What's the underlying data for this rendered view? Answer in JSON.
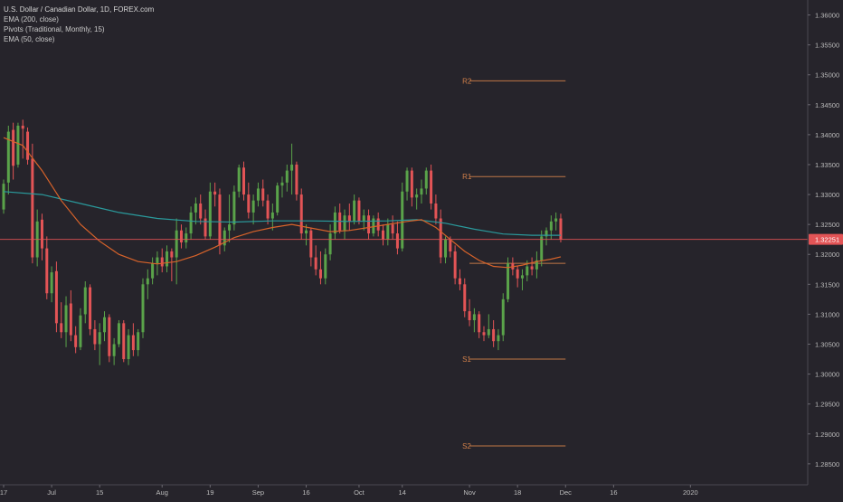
{
  "legend": {
    "symbol": "U.S. Dollar / Canadian Dollar, 1D, FOREX.com",
    "ema200": "EMA (200, close)",
    "pivots": "Pivots (Traditional, Monthly, 15)",
    "ema50": "EMA (50, close)"
  },
  "colors": {
    "background": "#26242b",
    "up": "#5aa34a",
    "down": "#e35456",
    "ema200": "#2a9a9c",
    "ema50": "#d8632a",
    "pivot": "#d2804a",
    "price_line": "#e35456",
    "text": "#bcbcbc"
  },
  "chart_data": {
    "type": "candlestick",
    "symbol": "U.S. Dollar / Canadian Dollar",
    "timeframe": "1D",
    "ylim": [
      1.2815,
      1.3625
    ],
    "yticks": [
      "1.36000",
      "1.35500",
      "1.35000",
      "1.34500",
      "1.34000",
      "1.33500",
      "1.33000",
      "1.32500",
      "1.32000",
      "1.31500",
      "1.31000",
      "1.30500",
      "1.30000",
      "1.29500",
      "1.29000",
      "1.28500"
    ],
    "x_ticks": [
      {
        "label": "17",
        "i": 0
      },
      {
        "label": "Jul",
        "i": 10
      },
      {
        "label": "15",
        "i": 20
      },
      {
        "label": "Aug",
        "i": 33
      },
      {
        "label": "19",
        "i": 43
      },
      {
        "label": "Sep",
        "i": 53
      },
      {
        "label": "16",
        "i": 63
      },
      {
        "label": "Oct",
        "i": 74
      },
      {
        "label": "14",
        "i": 83
      },
      {
        "label": "Nov",
        "i": 97
      },
      {
        "label": "18",
        "i": 107
      },
      {
        "label": "Dec",
        "i": 117
      },
      {
        "label": "16",
        "i": 127
      },
      {
        "label": "2020",
        "i": 143
      }
    ],
    "x_slots": 152,
    "last_price": "1.32251",
    "last_price_value": 1.32251,
    "candles": [
      [
        1.3275,
        1.3325,
        1.3268,
        1.3318
      ],
      [
        1.332,
        1.3415,
        1.33,
        1.3405
      ],
      [
        1.3408,
        1.342,
        1.3325,
        1.3348
      ],
      [
        1.335,
        1.342,
        1.3345,
        1.3415
      ],
      [
        1.3415,
        1.3425,
        1.336,
        1.341
      ],
      [
        1.3405,
        1.3412,
        1.335,
        1.3358
      ],
      [
        1.336,
        1.3385,
        1.3185,
        1.3195
      ],
      [
        1.3195,
        1.3275,
        1.318,
        1.3255
      ],
      [
        1.3258,
        1.3268,
        1.319,
        1.321
      ],
      [
        1.321,
        1.323,
        1.3125,
        1.3135
      ],
      [
        1.3135,
        1.318,
        1.312,
        1.317
      ],
      [
        1.3172,
        1.3188,
        1.307,
        1.3085
      ],
      [
        1.3085,
        1.312,
        1.306,
        1.307
      ],
      [
        1.307,
        1.313,
        1.3045,
        1.3115
      ],
      [
        1.3118,
        1.314,
        1.3055,
        1.3065
      ],
      [
        1.3065,
        1.308,
        1.3035,
        1.3045
      ],
      [
        1.3045,
        1.311,
        1.304,
        1.3098
      ],
      [
        1.31,
        1.3155,
        1.3085,
        1.3145
      ],
      [
        1.3145,
        1.315,
        1.3065,
        1.3075
      ],
      [
        1.3075,
        1.309,
        1.304,
        1.305
      ],
      [
        1.305,
        1.3085,
        1.3015,
        1.307
      ],
      [
        1.307,
        1.3105,
        1.3055,
        1.3095
      ],
      [
        1.3095,
        1.31,
        1.302,
        1.303
      ],
      [
        1.303,
        1.306,
        1.3015,
        1.305
      ],
      [
        1.305,
        1.309,
        1.3045,
        1.3085
      ],
      [
        1.3085,
        1.309,
        1.302,
        1.3025
      ],
      [
        1.3025,
        1.3075,
        1.3015,
        1.3065
      ],
      [
        1.3065,
        1.3085,
        1.303,
        1.304
      ],
      [
        1.304,
        1.3075,
        1.303,
        1.307
      ],
      [
        1.307,
        1.316,
        1.306,
        1.315
      ],
      [
        1.315,
        1.3175,
        1.3125,
        1.316
      ],
      [
        1.316,
        1.3195,
        1.315,
        1.3185
      ],
      [
        1.3185,
        1.3205,
        1.3165,
        1.3195
      ],
      [
        1.3195,
        1.321,
        1.317,
        1.318
      ],
      [
        1.318,
        1.3215,
        1.317,
        1.3205
      ],
      [
        1.3205,
        1.321,
        1.3155,
        1.3195
      ],
      [
        1.3195,
        1.326,
        1.315,
        1.324
      ],
      [
        1.324,
        1.325,
        1.321,
        1.322
      ],
      [
        1.322,
        1.3245,
        1.321,
        1.3235
      ],
      [
        1.3235,
        1.328,
        1.3225,
        1.327
      ],
      [
        1.327,
        1.3295,
        1.325,
        1.3285
      ],
      [
        1.3285,
        1.33,
        1.325,
        1.326
      ],
      [
        1.326,
        1.3275,
        1.3225,
        1.323
      ],
      [
        1.323,
        1.332,
        1.3225,
        1.3305
      ],
      [
        1.3305,
        1.332,
        1.328,
        1.33
      ],
      [
        1.33,
        1.331,
        1.32,
        1.3215
      ],
      [
        1.3215,
        1.3245,
        1.3205,
        1.324
      ],
      [
        1.324,
        1.33,
        1.322,
        1.325
      ],
      [
        1.325,
        1.3315,
        1.324,
        1.3305
      ],
      [
        1.3305,
        1.335,
        1.3295,
        1.3345
      ],
      [
        1.3345,
        1.3355,
        1.329,
        1.33
      ],
      [
        1.33,
        1.332,
        1.326,
        1.327
      ],
      [
        1.327,
        1.33,
        1.325,
        1.329
      ],
      [
        1.329,
        1.332,
        1.328,
        1.331
      ],
      [
        1.331,
        1.3325,
        1.328,
        1.329
      ],
      [
        1.329,
        1.33,
        1.325,
        1.326
      ],
      [
        1.326,
        1.3285,
        1.324,
        1.327
      ],
      [
        1.327,
        1.332,
        1.3265,
        1.3315
      ],
      [
        1.3315,
        1.333,
        1.3295,
        1.332
      ],
      [
        1.332,
        1.335,
        1.3305,
        1.334
      ],
      [
        1.334,
        1.3385,
        1.33,
        1.335
      ],
      [
        1.335,
        1.3355,
        1.329,
        1.33
      ],
      [
        1.33,
        1.331,
        1.3225,
        1.3235
      ],
      [
        1.3235,
        1.325,
        1.3215,
        1.324
      ],
      [
        1.324,
        1.3245,
        1.318,
        1.3195
      ],
      [
        1.3195,
        1.3215,
        1.3165,
        1.3175
      ],
      [
        1.3175,
        1.3205,
        1.315,
        1.316
      ],
      [
        1.316,
        1.321,
        1.315,
        1.32
      ],
      [
        1.32,
        1.325,
        1.319,
        1.3235
      ],
      [
        1.3235,
        1.328,
        1.3225,
        1.327
      ],
      [
        1.327,
        1.3285,
        1.3235,
        1.324
      ],
      [
        1.324,
        1.3275,
        1.3225,
        1.3265
      ],
      [
        1.3265,
        1.3285,
        1.324,
        1.3255
      ],
      [
        1.3255,
        1.33,
        1.325,
        1.329
      ],
      [
        1.329,
        1.3295,
        1.325,
        1.3255
      ],
      [
        1.3255,
        1.3275,
        1.324,
        1.3265
      ],
      [
        1.3265,
        1.3275,
        1.3225,
        1.3235
      ],
      [
        1.3235,
        1.3265,
        1.323,
        1.326
      ],
      [
        1.326,
        1.327,
        1.323,
        1.324
      ],
      [
        1.324,
        1.325,
        1.3215,
        1.3225
      ],
      [
        1.3225,
        1.326,
        1.3215,
        1.325
      ],
      [
        1.325,
        1.3265,
        1.3225,
        1.3235
      ],
      [
        1.3235,
        1.3255,
        1.32,
        1.321
      ],
      [
        1.321,
        1.332,
        1.3205,
        1.3305
      ],
      [
        1.3305,
        1.3345,
        1.329,
        1.334
      ],
      [
        1.334,
        1.3345,
        1.328,
        1.3295
      ],
      [
        1.3295,
        1.331,
        1.3275,
        1.33
      ],
      [
        1.33,
        1.3325,
        1.3285,
        1.331
      ],
      [
        1.331,
        1.3345,
        1.33,
        1.334
      ],
      [
        1.334,
        1.335,
        1.3275,
        1.3285
      ],
      [
        1.3285,
        1.33,
        1.325,
        1.326
      ],
      [
        1.326,
        1.3275,
        1.3185,
        1.3195
      ],
      [
        1.3195,
        1.323,
        1.3185,
        1.3225
      ],
      [
        1.3225,
        1.323,
        1.3195,
        1.3205
      ],
      [
        1.3205,
        1.3215,
        1.315,
        1.316
      ],
      [
        1.316,
        1.3175,
        1.314,
        1.315
      ],
      [
        1.315,
        1.316,
        1.3095,
        1.3105
      ],
      [
        1.3105,
        1.3125,
        1.308,
        1.309
      ],
      [
        1.309,
        1.311,
        1.307,
        1.31
      ],
      [
        1.31,
        1.3105,
        1.306,
        1.307
      ],
      [
        1.307,
        1.308,
        1.3055,
        1.3065
      ],
      [
        1.3065,
        1.31,
        1.306,
        1.3075
      ],
      [
        1.3075,
        1.309,
        1.3045,
        1.3055
      ],
      [
        1.3055,
        1.3075,
        1.304,
        1.3065
      ],
      [
        1.3065,
        1.3135,
        1.3055,
        1.3125
      ],
      [
        1.3125,
        1.3195,
        1.312,
        1.3185
      ],
      [
        1.3185,
        1.3195,
        1.3165,
        1.3175
      ],
      [
        1.3175,
        1.318,
        1.3145,
        1.316
      ],
      [
        1.316,
        1.3175,
        1.314,
        1.3165
      ],
      [
        1.3165,
        1.319,
        1.3155,
        1.318
      ],
      [
        1.318,
        1.3195,
        1.3165,
        1.3175
      ],
      [
        1.3175,
        1.3205,
        1.316,
        1.319
      ],
      [
        1.319,
        1.324,
        1.318,
        1.323
      ],
      [
        1.323,
        1.3245,
        1.3215,
        1.324
      ],
      [
        1.324,
        1.3265,
        1.3225,
        1.3255
      ],
      [
        1.3255,
        1.327,
        1.324,
        1.326
      ],
      [
        1.326,
        1.3268,
        1.322,
        1.3225
      ]
    ],
    "ema50": [
      {
        "i": 0,
        "v": 1.3395
      },
      {
        "i": 4,
        "v": 1.3382
      },
      {
        "i": 8,
        "v": 1.334
      },
      {
        "i": 12,
        "v": 1.329
      },
      {
        "i": 16,
        "v": 1.325
      },
      {
        "i": 20,
        "v": 1.3222
      },
      {
        "i": 24,
        "v": 1.32
      },
      {
        "i": 28,
        "v": 1.3188
      },
      {
        "i": 32,
        "v": 1.3184
      },
      {
        "i": 36,
        "v": 1.3188
      },
      {
        "i": 40,
        "v": 1.3198
      },
      {
        "i": 44,
        "v": 1.3212
      },
      {
        "i": 48,
        "v": 1.3228
      },
      {
        "i": 52,
        "v": 1.3238
      },
      {
        "i": 56,
        "v": 1.3245
      },
      {
        "i": 60,
        "v": 1.325
      },
      {
        "i": 64,
        "v": 1.3244
      },
      {
        "i": 68,
        "v": 1.3238
      },
      {
        "i": 72,
        "v": 1.324
      },
      {
        "i": 76,
        "v": 1.3245
      },
      {
        "i": 80,
        "v": 1.325
      },
      {
        "i": 84,
        "v": 1.3255
      },
      {
        "i": 87,
        "v": 1.3258
      },
      {
        "i": 90,
        "v": 1.3245
      },
      {
        "i": 93,
        "v": 1.3225
      },
      {
        "i": 96,
        "v": 1.3205
      },
      {
        "i": 99,
        "v": 1.319
      },
      {
        "i": 102,
        "v": 1.318
      },
      {
        "i": 105,
        "v": 1.3178
      },
      {
        "i": 108,
        "v": 1.3182
      },
      {
        "i": 111,
        "v": 1.3188
      },
      {
        "i": 114,
        "v": 1.3192
      },
      {
        "i": 116,
        "v": 1.3196
      }
    ],
    "ema200": [
      {
        "i": 0,
        "v": 1.3305
      },
      {
        "i": 8,
        "v": 1.33
      },
      {
        "i": 16,
        "v": 1.3285
      },
      {
        "i": 24,
        "v": 1.327
      },
      {
        "i": 32,
        "v": 1.326
      },
      {
        "i": 40,
        "v": 1.3255
      },
      {
        "i": 48,
        "v": 1.3254
      },
      {
        "i": 56,
        "v": 1.3256
      },
      {
        "i": 64,
        "v": 1.3256
      },
      {
        "i": 72,
        "v": 1.3255
      },
      {
        "i": 80,
        "v": 1.3256
      },
      {
        "i": 86,
        "v": 1.3258
      },
      {
        "i": 92,
        "v": 1.3252
      },
      {
        "i": 98,
        "v": 1.3242
      },
      {
        "i": 104,
        "v": 1.3234
      },
      {
        "i": 110,
        "v": 1.3232
      },
      {
        "i": 116,
        "v": 1.3232
      }
    ],
    "pivots": [
      {
        "name": "R2",
        "value": 1.349
      },
      {
        "name": "R1",
        "value": 1.333
      },
      {
        "name": "P",
        "value": 1.3185
      },
      {
        "name": "S1",
        "value": 1.3025
      },
      {
        "name": "S2",
        "value": 1.288
      }
    ],
    "pivot_range": {
      "i_start": 97,
      "i_end": 117
    }
  }
}
